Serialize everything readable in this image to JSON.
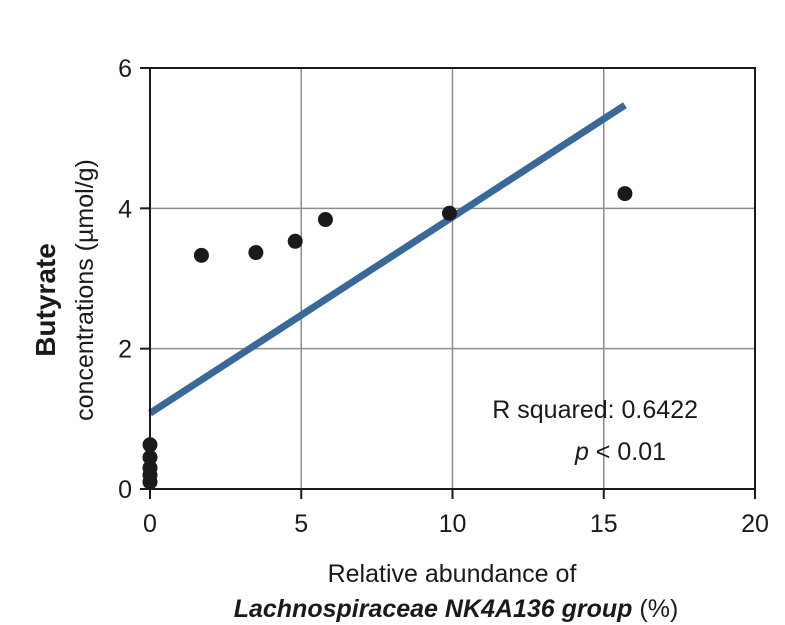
{
  "chart_data": {
    "type": "scatter",
    "title": "",
    "xlabel_line1": "Relative abundance of",
    "xlabel_line2_taxon": "Lachnospiraceae NK4A136 group",
    "xlabel_line2_unit": " (%)",
    "ylabel_bold": "Butyrate",
    "ylabel_rest": "concentrations (µmol/g)",
    "xlim": [
      0,
      20
    ],
    "ylim": [
      0,
      6
    ],
    "xticks": [
      0,
      5,
      10,
      15,
      20
    ],
    "yticks": [
      0,
      2,
      4,
      6
    ],
    "xtick_labels": [
      "0",
      "5",
      "10",
      "15",
      "20"
    ],
    "ytick_labels": [
      "0",
      "2",
      "4",
      "6"
    ],
    "grid": true,
    "series": [
      {
        "points": [
          {
            "x": 0,
            "y": 0.1
          },
          {
            "x": 0,
            "y": 0.2
          },
          {
            "x": 0,
            "y": 0.3
          },
          {
            "x": 0,
            "y": 0.45
          },
          {
            "x": 0,
            "y": 0.63
          },
          {
            "x": 1.7,
            "y": 3.33
          },
          {
            "x": 3.5,
            "y": 3.37
          },
          {
            "x": 4.8,
            "y": 3.53
          },
          {
            "x": 5.8,
            "y": 3.84
          },
          {
            "x": 9.9,
            "y": 3.93
          },
          {
            "x": 15.7,
            "y": 4.21
          }
        ],
        "color": "#1a1a1a"
      }
    ],
    "fit_line": {
      "x": [
        0,
        15.7
      ],
      "y": [
        1.08,
        5.47
      ],
      "color": "#3a6898"
    },
    "annotation_r2_label": "R squared:",
    "annotation_r2_value": "0.6422",
    "annotation_p_symbol": "p",
    "annotation_p_rest": "< 0.01"
  }
}
